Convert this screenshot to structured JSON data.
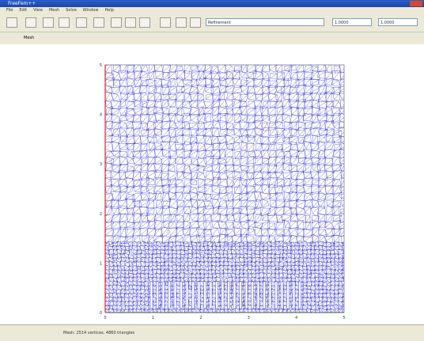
{
  "window": {
    "title": "FreeFem++",
    "menu": [
      "File",
      "Edit",
      "View",
      "Mesh",
      "Solve",
      "Window",
      "Help"
    ]
  },
  "toolbar": {
    "dropdown": "Refinement",
    "field1": "1.0000",
    "field2": "1.0000"
  },
  "tab": "Mesh",
  "status": "Mesh: 2514 vertices, 4860 triangles",
  "plot": {
    "xticks": [
      "0",
      "1",
      "2",
      "3",
      "4",
      "5"
    ],
    "yticks": [
      "0",
      "1",
      "2",
      "3",
      "4",
      "5"
    ]
  }
}
